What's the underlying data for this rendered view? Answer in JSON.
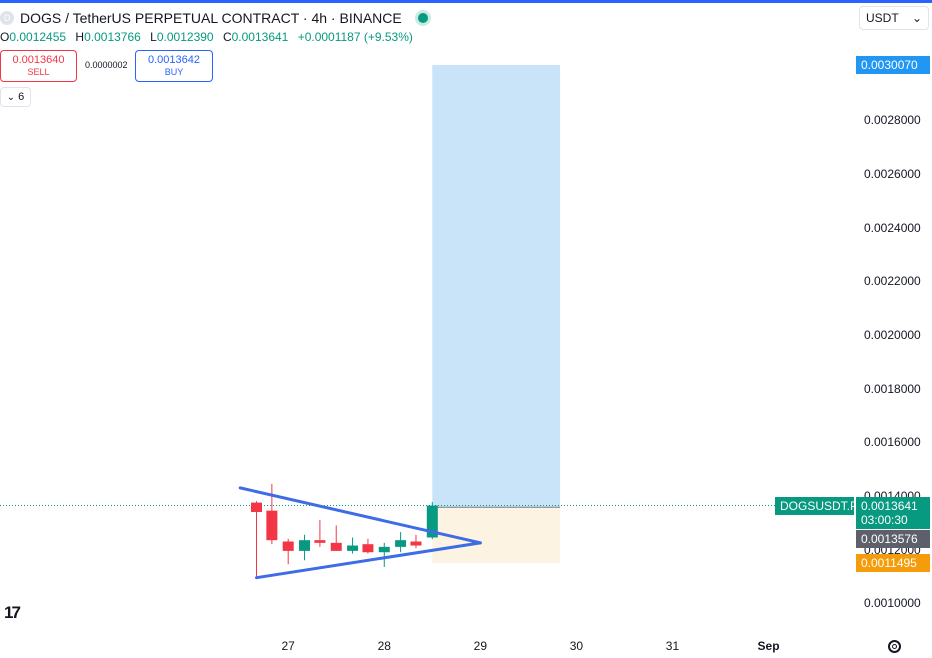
{
  "header": {
    "symbol_initial": "D",
    "title": "DOGS / TetherUS PERPETUAL CONTRACT · 4h · BINANCE"
  },
  "ohlc": {
    "o_label": "O",
    "o": "0.0012455",
    "h_label": "H",
    "h": "0.0013766",
    "l_label": "L",
    "l": "0.0012390",
    "c_label": "C",
    "c": "0.0013641",
    "change": "+0.0001187 (+9.53%)"
  },
  "trade": {
    "sell_price": "0.0013640",
    "sell_label": "SELL",
    "spread": "0.0000002",
    "buy_price": "0.0013642",
    "buy_label": "BUY"
  },
  "indicators_collapse": {
    "count": "6"
  },
  "currency": {
    "label": "USDT",
    "arrow": "⌄"
  },
  "price_tags": {
    "target": "0.0030070",
    "symbol": "DOGSUSDT.P",
    "last": "0.0013641",
    "countdown": "03:00:30",
    "entry": "0.0013576",
    "stop": "0.0011495"
  },
  "colors": {
    "up": "#089981",
    "down": "#f23645",
    "triangle": "#3d6ce6",
    "profit_zone": "#c9e4f8",
    "loss_zone": "#fdf3e3",
    "target_tag": "#2196f3",
    "stop_tag": "#f59c0a",
    "entry_tag": "#5d606b"
  },
  "chart_data": {
    "type": "candlestick",
    "timeframe": "4h",
    "y_ticks": [
      "0.0010000",
      "0.0012000",
      "0.0014000",
      "0.0016000",
      "0.0018000",
      "0.0020000",
      "0.0022000",
      "0.0024000",
      "0.0026000",
      "0.0028000"
    ],
    "ylim": [
      0.0009,
      0.0031
    ],
    "x_ticks": [
      {
        "label": "27",
        "x": 27.0
      },
      {
        "label": "28",
        "x": 28.0
      },
      {
        "label": "29",
        "x": 29.0
      },
      {
        "label": "30",
        "x": 30.0
      },
      {
        "label": "31",
        "x": 31.0
      },
      {
        "label": "Sep",
        "x": 32.0
      }
    ],
    "xlim": [
      24.0,
      32.9
    ],
    "candles": [
      {
        "t": 26.67,
        "o": 0.001375,
        "h": 0.00138,
        "l": 0.0011,
        "c": 0.00134
      },
      {
        "t": 26.83,
        "o": 0.001345,
        "h": 0.001445,
        "l": 0.00122,
        "c": 0.001235
      },
      {
        "t": 27.0,
        "o": 0.00123,
        "h": 0.00124,
        "l": 0.001145,
        "c": 0.001195
      },
      {
        "t": 27.17,
        "o": 0.001195,
        "h": 0.001255,
        "l": 0.00116,
        "c": 0.001235
      },
      {
        "t": 27.33,
        "o": 0.001235,
        "h": 0.00131,
        "l": 0.00121,
        "c": 0.001225
      },
      {
        "t": 27.5,
        "o": 0.001225,
        "h": 0.00129,
        "l": 0.001195,
        "c": 0.001195
      },
      {
        "t": 27.67,
        "o": 0.001195,
        "h": 0.001245,
        "l": 0.001185,
        "c": 0.001215
      },
      {
        "t": 27.83,
        "o": 0.00122,
        "h": 0.00124,
        "l": 0.001185,
        "c": 0.00119
      },
      {
        "t": 28.0,
        "o": 0.00119,
        "h": 0.001225,
        "l": 0.001135,
        "c": 0.00121
      },
      {
        "t": 28.17,
        "o": 0.00121,
        "h": 0.001265,
        "l": 0.00119,
        "c": 0.001235
      },
      {
        "t": 28.33,
        "o": 0.00123,
        "h": 0.001255,
        "l": 0.001205,
        "c": 0.001215
      },
      {
        "t": 28.5,
        "o": 0.001245,
        "h": 0.001377,
        "l": 0.001239,
        "c": 0.001364
      }
    ],
    "triangle": {
      "upper": [
        [
          26.5,
          0.00143
        ],
        [
          29.0,
          0.001225
        ]
      ],
      "lower": [
        [
          26.67,
          0.001095
        ],
        [
          29.0,
          0.001225
        ]
      ]
    },
    "long_position": {
      "x_start": 28.5,
      "x_end": 29.83,
      "entry": 0.0013576,
      "target": 0.003007,
      "stop": 0.0011495
    },
    "last_price": 0.0013641
  }
}
